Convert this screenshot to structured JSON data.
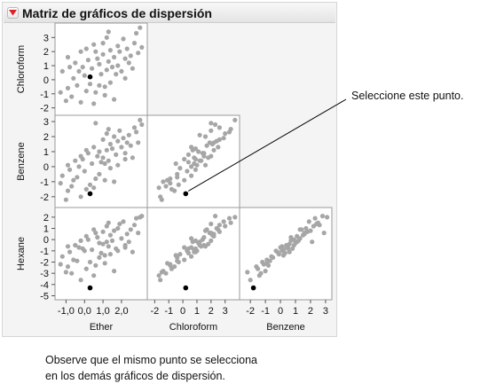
{
  "report": {
    "title": "Matriz de gráficos de dispersión",
    "disclosure_icon": "red-triangle-menu-icon"
  },
  "colors": {
    "point": "#a6a6a6",
    "selected_point": "#000000",
    "disclosure": "#d9232a",
    "frame": "#9a9a9a",
    "panel_background": "#f4f4f4",
    "plot_background": "#ffffff"
  },
  "callout": {
    "label": "Seleccione este punto."
  },
  "note": {
    "line1": "Observe que el mismo punto se selecciona",
    "line2": "en los demás gráficos de dispersión."
  },
  "chart_data": {
    "type": "scatter",
    "variables": [
      {
        "name": "Ether",
        "range": [
          -1.5,
          3.3
        ],
        "ticks": [
          -1.0,
          0.0,
          1.0,
          2.0
        ],
        "tick_labels": [
          "-1,0",
          "0,0",
          "1,0",
          "2,0"
        ]
      },
      {
        "name": "Chloroform",
        "range": [
          -2.4,
          3.9
        ],
        "ticks": [
          -2,
          -1,
          0,
          1,
          2,
          3
        ],
        "tick_labels": [
          "-2",
          "-1",
          "0",
          "1",
          "2",
          "3"
        ]
      },
      {
        "name": "Benzene",
        "range": [
          -2.6,
          3.3
        ],
        "ticks": [
          -2,
          -1,
          0,
          1,
          2,
          3
        ],
        "tick_labels": [
          "-2",
          "-1",
          "0",
          "1",
          "2",
          "3"
        ]
      },
      {
        "name": "Hexane",
        "range": [
          -5.2,
          2.7
        ],
        "ticks": [
          -5,
          -4,
          -3,
          -2,
          -1,
          0,
          1,
          2
        ],
        "tick_labels": [
          "-5",
          "-4",
          "-3",
          "-2",
          "-1",
          "0",
          "1",
          "2"
        ]
      }
    ],
    "panels": [
      {
        "row": "Chloroform",
        "col": "Ether"
      },
      {
        "row": "Benzene",
        "col": "Ether"
      },
      {
        "row": "Benzene",
        "col": "Chloroform"
      },
      {
        "row": "Hexane",
        "col": "Ether"
      },
      {
        "row": "Hexane",
        "col": "Chloroform"
      },
      {
        "row": "Hexane",
        "col": "Benzene"
      }
    ],
    "observations": [
      {
        "Ether": 0.3,
        "Chloroform": 0.2,
        "Benzene": -1.8,
        "Hexane": -4.3,
        "selected": true
      },
      {
        "Ether": -1.3,
        "Chloroform": -0.9,
        "Benzene": -1.1,
        "Hexane": -2.2
      },
      {
        "Ether": -1.2,
        "Chloroform": 0.6,
        "Benzene": -0.6,
        "Hexane": -1.5
      },
      {
        "Ether": -1.0,
        "Chloroform": -1.5,
        "Benzene": -2.2,
        "Hexane": -2.9
      },
      {
        "Ether": -0.9,
        "Chloroform": -0.6,
        "Benzene": -1.6,
        "Hexane": -2.4
      },
      {
        "Ether": -0.8,
        "Chloroform": 0.9,
        "Benzene": -0.2,
        "Hexane": -1.1
      },
      {
        "Ether": -0.7,
        "Chloroform": -1.2,
        "Benzene": -1.3,
        "Hexane": -3.0
      },
      {
        "Ether": -0.6,
        "Chloroform": 0.1,
        "Benzene": -0.9,
        "Hexane": -1.8
      },
      {
        "Ether": -0.5,
        "Chloroform": 1.2,
        "Benzene": 0.4,
        "Hexane": -0.5
      },
      {
        "Ether": -0.4,
        "Chloroform": -0.4,
        "Benzene": -0.7,
        "Hexane": -1.9
      },
      {
        "Ether": -0.3,
        "Chloroform": 0.6,
        "Benzene": 0.0,
        "Hexane": -0.7
      },
      {
        "Ether": -0.2,
        "Chloroform": -1.6,
        "Benzene": -2.0,
        "Hexane": -3.6
      },
      {
        "Ether": -0.1,
        "Chloroform": 0.9,
        "Benzene": 0.5,
        "Hexane": -0.8
      },
      {
        "Ether": 0.0,
        "Chloroform": 0.3,
        "Benzene": -0.3,
        "Hexane": -1.0
      },
      {
        "Ether": 0.1,
        "Chloroform": -0.8,
        "Benzene": -1.5,
        "Hexane": -2.6
      },
      {
        "Ether": 0.2,
        "Chloroform": 1.4,
        "Benzene": 0.9,
        "Hexane": 0.0
      },
      {
        "Ether": 0.3,
        "Chloroform": -0.3,
        "Benzene": -1.2,
        "Hexane": -2.0
      },
      {
        "Ether": 0.4,
        "Chloroform": 0.8,
        "Benzene": 0.2,
        "Hexane": -0.9
      },
      {
        "Ether": 0.5,
        "Chloroform": 2.5,
        "Benzene": 1.3,
        "Hexane": 0.9
      },
      {
        "Ether": 0.6,
        "Chloroform": -0.9,
        "Benzene": -0.8,
        "Hexane": -2.3
      },
      {
        "Ether": 0.6,
        "Chloroform": 2.0,
        "Benzene": 2.9,
        "Hexane": 0.6
      },
      {
        "Ether": 0.7,
        "Chloroform": 1.5,
        "Benzene": 0.7,
        "Hexane": 0.2
      },
      {
        "Ether": 0.8,
        "Chloroform": -0.4,
        "Benzene": -0.5,
        "Hexane": -1.6
      },
      {
        "Ether": 0.8,
        "Chloroform": 1.1,
        "Benzene": 1.0,
        "Hexane": -0.3
      },
      {
        "Ether": 0.9,
        "Chloroform": 0.4,
        "Benzene": 0.3,
        "Hexane": -1.2
      },
      {
        "Ether": 1.0,
        "Chloroform": 2.6,
        "Benzene": 1.8,
        "Hexane": 0.7
      },
      {
        "Ether": 1.0,
        "Chloroform": 1.8,
        "Benzene": 0.6,
        "Hexane": -0.4
      },
      {
        "Ether": 1.1,
        "Chloroform": -1.1,
        "Benzene": -0.9,
        "Hexane": -2.1
      },
      {
        "Ether": 1.2,
        "Chloroform": 0.7,
        "Benzene": 1.1,
        "Hexane": -0.2
      },
      {
        "Ether": 1.2,
        "Chloroform": 3.0,
        "Benzene": 2.2,
        "Hexane": 1.2
      },
      {
        "Ether": 1.3,
        "Chloroform": 1.3,
        "Benzene": 0.4,
        "Hexane": -0.6
      },
      {
        "Ether": 1.4,
        "Chloroform": -0.2,
        "Benzene": -0.1,
        "Hexane": -1.3
      },
      {
        "Ether": 1.4,
        "Chloroform": 2.1,
        "Benzene": 1.5,
        "Hexane": 0.4
      },
      {
        "Ether": 1.5,
        "Chloroform": 0.9,
        "Benzene": 1.2,
        "Hexane": -0.1
      },
      {
        "Ether": 1.6,
        "Chloroform": 1.6,
        "Benzene": 2.0,
        "Hexane": 0.8
      },
      {
        "Ether": 1.6,
        "Chloroform": -1.4,
        "Benzene": -1.0,
        "Hexane": -2.8
      },
      {
        "Ether": 1.7,
        "Chloroform": 0.4,
        "Benzene": 0.8,
        "Hexane": -0.8
      },
      {
        "Ether": 1.8,
        "Chloroform": 2.4,
        "Benzene": 1.7,
        "Hexane": 1.0
      },
      {
        "Ether": 1.8,
        "Chloroform": 1.0,
        "Benzene": 0.1,
        "Hexane": -1.0
      },
      {
        "Ether": 1.9,
        "Chloroform": 2.0,
        "Benzene": 2.4,
        "Hexane": 1.4
      },
      {
        "Ether": 2.0,
        "Chloroform": 0.6,
        "Benzene": 1.3,
        "Hexane": 0.1
      },
      {
        "Ether": 2.1,
        "Chloroform": 2.9,
        "Benzene": 1.9,
        "Hexane": 1.6
      },
      {
        "Ether": 2.2,
        "Chloroform": 1.5,
        "Benzene": 0.9,
        "Hexane": -0.5
      },
      {
        "Ether": 2.3,
        "Chloroform": 2.2,
        "Benzene": 1.6,
        "Hexane": 0.5
      },
      {
        "Ether": 2.4,
        "Chloroform": 1.2,
        "Benzene": 2.1,
        "Hexane": -0.2
      },
      {
        "Ether": 2.5,
        "Chloroform": 1.7,
        "Benzene": 1.4,
        "Hexane": 0.9
      },
      {
        "Ether": 2.6,
        "Chloroform": 0.8,
        "Benzene": 0.6,
        "Hexane": -1.1
      },
      {
        "Ether": 2.7,
        "Chloroform": 2.6,
        "Benzene": 2.6,
        "Hexane": 1.3
      },
      {
        "Ether": 2.8,
        "Chloroform": 3.3,
        "Benzene": 2.3,
        "Hexane": 1.9
      },
      {
        "Ether": 2.9,
        "Chloroform": 1.9,
        "Benzene": 1.6,
        "Hexane": 0.6
      },
      {
        "Ether": 3.0,
        "Chloroform": 3.7,
        "Benzene": 3.1,
        "Hexane": 2.0
      },
      {
        "Ether": 3.1,
        "Chloroform": 2.3,
        "Benzene": 2.8,
        "Hexane": 2.1
      },
      {
        "Ether": -0.2,
        "Chloroform": 2.0,
        "Benzene": 0.7,
        "Hexane": -0.1
      },
      {
        "Ether": 0.5,
        "Chloroform": -1.7,
        "Benzene": -1.4,
        "Hexane": -3.2
      },
      {
        "Ether": 1.1,
        "Chloroform": -0.5,
        "Benzene": 0.2,
        "Hexane": -1.4
      },
      {
        "Ether": 2.2,
        "Chloroform": 0.1,
        "Benzene": 0.5,
        "Hexane": -0.7
      },
      {
        "Ether": -0.9,
        "Chloroform": 1.6,
        "Benzene": 0.1,
        "Hexane": -0.6
      },
      {
        "Ether": 0.1,
        "Chloroform": 2.2,
        "Benzene": 1.1,
        "Hexane": 0.3
      },
      {
        "Ether": 1.3,
        "Chloroform": 3.4,
        "Benzene": 2.5,
        "Hexane": 1.5
      }
    ]
  }
}
